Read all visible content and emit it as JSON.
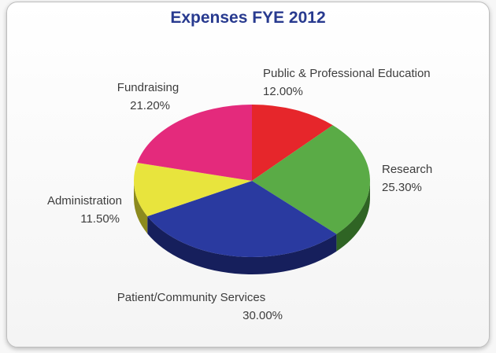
{
  "chart_data": {
    "type": "pie",
    "title": "Expenses FYE 2012",
    "slices": [
      {
        "label": "Public & Professional Education",
        "value": 12.0,
        "display": "12.00%",
        "color": "#e6262b",
        "side": "#8f1517"
      },
      {
        "label": "Research",
        "value": 25.3,
        "display": "25.30%",
        "color": "#5aab46",
        "side": "#2f6424"
      },
      {
        "label": "Patient/Community Services",
        "value": 30.0,
        "display": "30.00%",
        "color": "#2a3aa0",
        "side": "#161f5c"
      },
      {
        "label": "Administration",
        "value": 11.5,
        "display": "11.50%",
        "color": "#e8e43d",
        "side": "#8c8a1e"
      },
      {
        "label": "Fundraising",
        "value": 21.2,
        "display": "21.20%",
        "color": "#e42a7c",
        "side": "#861546"
      }
    ],
    "start": "top",
    "direction": "clockwise",
    "style": "3d"
  }
}
